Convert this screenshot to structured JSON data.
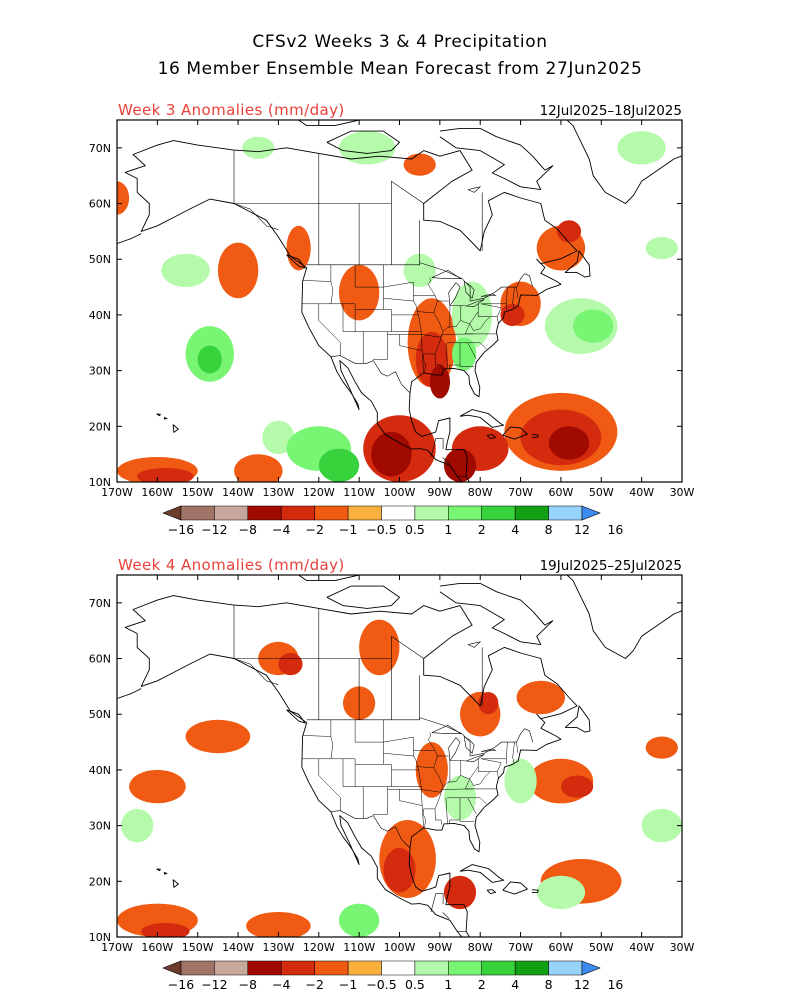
{
  "title": {
    "line1": "CFSv2 Weeks 3 & 4 Precipitation",
    "line2": "16 Member Ensemble Mean Forecast from 27Jun2025"
  },
  "colors": {
    "label_red": "#e8413a",
    "dry": [
      "#6e3c2c",
      "#a07466",
      "#c8a89c",
      "#a00a00",
      "#d42a0e",
      "#f05a12",
      "#fab03c"
    ],
    "neutral": "#ffffff",
    "wet": [
      "#b4faaa",
      "#78f573",
      "#37d23c",
      "#14a014",
      "#96d2fa",
      "#3c8cf0"
    ],
    "coast": "#000000"
  },
  "panels": [
    {
      "label": "Week 3 Anomalies (mm/day)",
      "dates": "12Jul2025–18Jul2025"
    },
    {
      "label": "Week 4 Anomalies (mm/day)",
      "dates": "19Jul2025–25Jul2025"
    }
  ],
  "axes": {
    "lat_labels": [
      "70N",
      "60N",
      "50N",
      "40N",
      "30N",
      "20N",
      "10N"
    ],
    "lon_labels": [
      "170W",
      "160W",
      "150W",
      "140W",
      "130W",
      "120W",
      "110W",
      "100W",
      "90W",
      "80W",
      "70W",
      "60W",
      "50W",
      "40W",
      "30W"
    ]
  },
  "colorbar": {
    "labels": [
      "−16",
      "−12",
      "−8",
      "−4",
      "−2",
      "−1",
      "−0.5",
      "0.5",
      "1",
      "2",
      "4",
      "8",
      "12",
      "16"
    ]
  },
  "chart_data": {
    "type": "heatmap",
    "variable": "Precipitation anomaly",
    "units": "mm/day",
    "contour_levels": [
      -16,
      -12,
      -8,
      -4,
      -2,
      -1,
      -0.5,
      0.5,
      1,
      2,
      4,
      8,
      12,
      16
    ],
    "lat_range": [
      10,
      75
    ],
    "lon_range": [
      -170,
      -30
    ],
    "maps": [
      {
        "panel": "Week 3",
        "patches": [
          {
            "lon": -170,
            "lat": 61,
            "rx": 3,
            "ry": 3,
            "level": -1
          },
          {
            "lon": -153,
            "lat": 48,
            "rx": 6,
            "ry": 3,
            "level": 0.5
          },
          {
            "lon": -140,
            "lat": 48,
            "rx": 5,
            "ry": 5,
            "level": -1
          },
          {
            "lon": -147,
            "lat": 33,
            "rx": 6,
            "ry": 5,
            "level": 1
          },
          {
            "lon": -147,
            "lat": 32,
            "rx": 3,
            "ry": 2.5,
            "level": 2
          },
          {
            "lon": -130,
            "lat": 18,
            "rx": 4,
            "ry": 3,
            "level": 0.5
          },
          {
            "lon": -120,
            "lat": 16,
            "rx": 8,
            "ry": 4,
            "level": 1
          },
          {
            "lon": -115,
            "lat": 13,
            "rx": 5,
            "ry": 3,
            "level": 2
          },
          {
            "lon": -160,
            "lat": 12,
            "rx": 10,
            "ry": 2.5,
            "level": -1
          },
          {
            "lon": -158,
            "lat": 11,
            "rx": 7,
            "ry": 1.5,
            "level": -2
          },
          {
            "lon": -135,
            "lat": 12,
            "rx": 6,
            "ry": 3,
            "level": -1
          },
          {
            "lon": -100,
            "lat": 16,
            "rx": 9,
            "ry": 6,
            "level": -2
          },
          {
            "lon": -102,
            "lat": 15,
            "rx": 5,
            "ry": 4,
            "level": -4
          },
          {
            "lon": -125,
            "lat": 52,
            "rx": 3,
            "ry": 4,
            "level": -1
          },
          {
            "lon": -110,
            "lat": 44,
            "rx": 5,
            "ry": 5,
            "level": -1
          },
          {
            "lon": -92,
            "lat": 35,
            "rx": 6,
            "ry": 8,
            "level": -1
          },
          {
            "lon": -92,
            "lat": 32,
            "rx": 4,
            "ry": 5,
            "level": -2
          },
          {
            "lon": -90,
            "lat": 28,
            "rx": 2.5,
            "ry": 3,
            "level": -4
          },
          {
            "lon": -82,
            "lat": 40,
            "rx": 5,
            "ry": 6,
            "level": 0.5
          },
          {
            "lon": -84,
            "lat": 33,
            "rx": 3,
            "ry": 3,
            "level": 1
          },
          {
            "lon": -70,
            "lat": 42,
            "rx": 5,
            "ry": 4,
            "level": -1
          },
          {
            "lon": -72,
            "lat": 40,
            "rx": 3,
            "ry": 2,
            "level": -2
          },
          {
            "lon": -55,
            "lat": 38,
            "rx": 9,
            "ry": 5,
            "level": 0.5
          },
          {
            "lon": -52,
            "lat": 38,
            "rx": 5,
            "ry": 3,
            "level": 1
          },
          {
            "lon": -60,
            "lat": 19,
            "rx": 14,
            "ry": 7,
            "level": -1
          },
          {
            "lon": -60,
            "lat": 18,
            "rx": 10,
            "ry": 5,
            "level": -2
          },
          {
            "lon": -58,
            "lat": 17,
            "rx": 5,
            "ry": 3,
            "level": -4
          },
          {
            "lon": -80,
            "lat": 16,
            "rx": 7,
            "ry": 4,
            "level": -2
          },
          {
            "lon": -85,
            "lat": 13,
            "rx": 4,
            "ry": 3,
            "level": -4
          },
          {
            "lon": -60,
            "lat": 52,
            "rx": 6,
            "ry": 4,
            "level": -1
          },
          {
            "lon": -58,
            "lat": 55,
            "rx": 3,
            "ry": 2,
            "level": -2
          },
          {
            "lon": -40,
            "lat": 70,
            "rx": 6,
            "ry": 3,
            "level": 0.5
          },
          {
            "lon": -108,
            "lat": 70,
            "rx": 7,
            "ry": 3,
            "level": 0.5
          },
          {
            "lon": -95,
            "lat": 67,
            "rx": 4,
            "ry": 2,
            "level": -1
          },
          {
            "lon": -135,
            "lat": 70,
            "rx": 4,
            "ry": 2,
            "level": 0.5
          },
          {
            "lon": -35,
            "lat": 52,
            "rx": 4,
            "ry": 2,
            "level": 0.5
          },
          {
            "lon": -95,
            "lat": 48,
            "rx": 4,
            "ry": 3,
            "level": 0.5
          }
        ]
      },
      {
        "panel": "Week 4",
        "patches": [
          {
            "lon": -145,
            "lat": 46,
            "rx": 8,
            "ry": 3,
            "level": -1
          },
          {
            "lon": -160,
            "lat": 37,
            "rx": 7,
            "ry": 3,
            "level": -1
          },
          {
            "lon": -130,
            "lat": 60,
            "rx": 5,
            "ry": 3,
            "level": -1
          },
          {
            "lon": -127,
            "lat": 59,
            "rx": 3,
            "ry": 2,
            "level": -2
          },
          {
            "lon": -105,
            "lat": 62,
            "rx": 5,
            "ry": 5,
            "level": -1
          },
          {
            "lon": -110,
            "lat": 52,
            "rx": 4,
            "ry": 3,
            "level": -1
          },
          {
            "lon": -80,
            "lat": 50,
            "rx": 5,
            "ry": 4,
            "level": -1
          },
          {
            "lon": -78,
            "lat": 52,
            "rx": 2.5,
            "ry": 2,
            "level": -2
          },
          {
            "lon": -65,
            "lat": 53,
            "rx": 6,
            "ry": 3,
            "level": -1
          },
          {
            "lon": -92,
            "lat": 40,
            "rx": 4,
            "ry": 5,
            "level": -1
          },
          {
            "lon": -98,
            "lat": 24,
            "rx": 7,
            "ry": 7,
            "level": -1
          },
          {
            "lon": -100,
            "lat": 22,
            "rx": 4,
            "ry": 4,
            "level": -2
          },
          {
            "lon": -160,
            "lat": 13,
            "rx": 10,
            "ry": 3,
            "level": -1
          },
          {
            "lon": -158,
            "lat": 11,
            "rx": 6,
            "ry": 1.5,
            "level": -2
          },
          {
            "lon": -130,
            "lat": 12,
            "rx": 8,
            "ry": 2.5,
            "level": -1
          },
          {
            "lon": -110,
            "lat": 13,
            "rx": 5,
            "ry": 3,
            "level": 1
          },
          {
            "lon": -60,
            "lat": 38,
            "rx": 8,
            "ry": 4,
            "level": -1
          },
          {
            "lon": -56,
            "lat": 37,
            "rx": 4,
            "ry": 2,
            "level": -2
          },
          {
            "lon": -70,
            "lat": 38,
            "rx": 4,
            "ry": 4,
            "level": 0.5
          },
          {
            "lon": -85,
            "lat": 35,
            "rx": 4,
            "ry": 4,
            "level": 0.5
          },
          {
            "lon": -55,
            "lat": 20,
            "rx": 10,
            "ry": 4,
            "level": -1
          },
          {
            "lon": -60,
            "lat": 18,
            "rx": 6,
            "ry": 3,
            "level": 0.5
          },
          {
            "lon": -165,
            "lat": 30,
            "rx": 4,
            "ry": 3,
            "level": 0.5
          },
          {
            "lon": -35,
            "lat": 30,
            "rx": 5,
            "ry": 3,
            "level": 0.5
          },
          {
            "lon": -85,
            "lat": 18,
            "rx": 4,
            "ry": 3,
            "level": -2
          },
          {
            "lon": -35,
            "lat": 44,
            "rx": 4,
            "ry": 2,
            "level": -1
          }
        ]
      }
    ]
  }
}
